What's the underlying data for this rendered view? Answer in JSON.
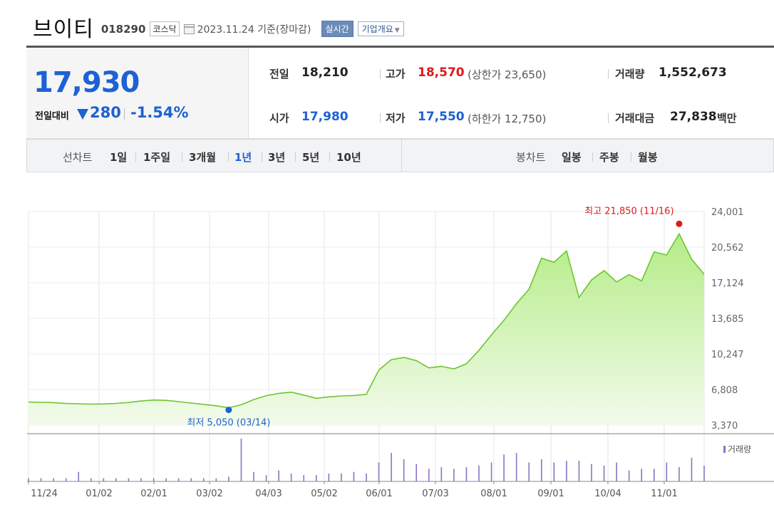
{
  "header": {
    "stock_name": "브이티",
    "stock_code": "018290",
    "market": "코스닥",
    "as_of": "2023.11.24 기준(장마감)",
    "realtime_btn": "실시간",
    "company_btn": "기업개요"
  },
  "summary": {
    "price": "17,930",
    "change_label": "전일대비",
    "change": "280",
    "change_rate": "-1.54%",
    "prev_close_label": "전일",
    "prev_close": "18,210",
    "high_label": "고가",
    "high": "18,570",
    "upper_limit": "(상한가 23,650)",
    "volume_label": "거래량",
    "volume": "1,552,673",
    "open_label": "시가",
    "open": "17,980",
    "low_label": "저가",
    "low": "17,550",
    "lower_limit": "(하한가 12,750)",
    "trade_value_label": "거래대금",
    "trade_value": "27,838",
    "trade_value_unit": "백만"
  },
  "period_bar": {
    "line_chart_label": "선차트",
    "line_periods": [
      "1일",
      "1주일",
      "3개월",
      "1년",
      "3년",
      "5년",
      "10년"
    ],
    "active_period": "1년",
    "candle_chart_label": "봉차트",
    "candle_periods": [
      "일봉",
      "주봉",
      "월봉"
    ]
  },
  "colors": {
    "up": "#e01818",
    "down": "#1d61d4",
    "line": "#6dc531",
    "fill_top": "#b4ec87",
    "volume": "#8a73c5"
  },
  "chart_data": {
    "type": "area",
    "y_ticks": [
      "24,001",
      "20,562",
      "17,124",
      "13,685",
      "10,247",
      "6,808",
      "3,370"
    ],
    "ylim": [
      3370,
      24001
    ],
    "x_ticks": [
      "11/24",
      "01/02",
      "02/01",
      "03/02",
      "04/03",
      "05/02",
      "06/01",
      "07/03",
      "08/01",
      "09/01",
      "10/04",
      "11/01"
    ],
    "price": [
      5600,
      5570,
      5540,
      5460,
      5430,
      5400,
      5420,
      5470,
      5560,
      5700,
      5800,
      5760,
      5640,
      5500,
      5380,
      5240,
      5050,
      5340,
      5840,
      6220,
      6440,
      6560,
      6270,
      5960,
      6100,
      6190,
      6230,
      6340,
      8700,
      9700,
      9900,
      9600,
      8900,
      9050,
      8800,
      9300,
      10600,
      12100,
      13500,
      15100,
      16500,
      19500,
      19100,
      20200,
      15700,
      17400,
      18300,
      17200,
      17900,
      17300,
      20100,
      19800,
      21850,
      19400,
      17930
    ],
    "volume_legend": "거래량",
    "volume": [
      2,
      2,
      2,
      2,
      6,
      2,
      2,
      2,
      2,
      2,
      2,
      2,
      2,
      2,
      2,
      2,
      3,
      27,
      6,
      4,
      7,
      5,
      4,
      4,
      5,
      5,
      6,
      5,
      12,
      18,
      14,
      11,
      8,
      9,
      8,
      9,
      10,
      12,
      17,
      18,
      12,
      14,
      12,
      13,
      13,
      11,
      10,
      12,
      7,
      8,
      8,
      12,
      9,
      15,
      10
    ],
    "annotations": {
      "max_label": "최고 21,850 (11/16)",
      "min_label": "최저 5,050 (03/14)"
    }
  }
}
